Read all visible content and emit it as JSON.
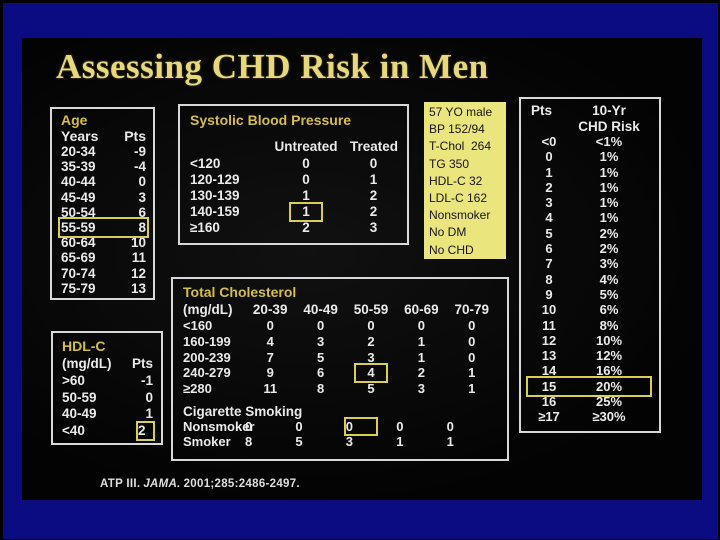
{
  "slide": {
    "title": "Assessing CHD Risk in Men",
    "citation": {
      "source": "ATP III.",
      "journal": "JAMA.",
      "ref": "2001;285:2486-2497."
    }
  },
  "colors": {
    "frame_blue": "#0c0c82",
    "slide_bg": "#030303",
    "title_yellow": "#e8d87c",
    "accent_yellow": "#d6bd4a",
    "text_white": "#eaeaea",
    "info_box_bg": "#ebe57e",
    "highlight_box": "#d9ce54"
  },
  "age": {
    "title": "Age",
    "col_range": "Years",
    "col_pts": "Pts",
    "rows": [
      {
        "range": "20-34",
        "pts": "-9"
      },
      {
        "range": "35-39",
        "pts": "-4"
      },
      {
        "range": "40-44",
        "pts": "0"
      },
      {
        "range": "45-49",
        "pts": "3"
      },
      {
        "range": "50-54",
        "pts": "6"
      },
      {
        "range": "55-59",
        "pts": "8",
        "highlighted": true
      },
      {
        "range": "60-64",
        "pts": "10"
      },
      {
        "range": "65-69",
        "pts": "11"
      },
      {
        "range": "70-74",
        "pts": "12"
      },
      {
        "range": "75-79",
        "pts": "13"
      }
    ]
  },
  "sbp": {
    "title": "Systolic Blood Pressure",
    "col_untreated": "Untreated",
    "col_treated": "Treated",
    "rows": [
      {
        "range": "<120",
        "untreated": "0",
        "treated": "0"
      },
      {
        "range": "120-129",
        "untreated": "0",
        "treated": "1"
      },
      {
        "range": "130-139",
        "untreated": "1",
        "treated": "2"
      },
      {
        "range": "140-159",
        "untreated": "1",
        "treated": "2",
        "highlighted": "untreated"
      },
      {
        "range": "≥160",
        "untreated": "2",
        "treated": "3"
      }
    ]
  },
  "patient": {
    "lines": [
      "57 YO male",
      "BP 152/94",
      "T-Chol  264",
      "TG 350",
      "HDL-C 32",
      "LDL-C 162",
      "Nonsmoker",
      "No DM",
      "No CHD"
    ]
  },
  "risk": {
    "col_pts": "Pts",
    "col_risk_line1": "10-Yr",
    "col_risk_line2": "CHD Risk",
    "rows": [
      {
        "pts": "<0",
        "risk": "<1%"
      },
      {
        "pts": "0",
        "risk": "1%"
      },
      {
        "pts": "1",
        "risk": "1%"
      },
      {
        "pts": "2",
        "risk": "1%"
      },
      {
        "pts": "3",
        "risk": "1%"
      },
      {
        "pts": "4",
        "risk": "1%"
      },
      {
        "pts": "5",
        "risk": "2%"
      },
      {
        "pts": "6",
        "risk": "2%"
      },
      {
        "pts": "7",
        "risk": "3%"
      },
      {
        "pts": "8",
        "risk": "4%"
      },
      {
        "pts": "9",
        "risk": "5%"
      },
      {
        "pts": "10",
        "risk": "6%"
      },
      {
        "pts": "11",
        "risk": "8%"
      },
      {
        "pts": "12",
        "risk": "10%"
      },
      {
        "pts": "13",
        "risk": "12%"
      },
      {
        "pts": "14",
        "risk": "16%"
      },
      {
        "pts": "15",
        "risk": "20%",
        "highlighted": true
      },
      {
        "pts": "16",
        "risk": "25%"
      },
      {
        "pts": "≥17",
        "risk": "≥30%"
      }
    ]
  },
  "cholesterol": {
    "title": "Total Cholesterol",
    "row_header": "(mg/dL)",
    "age_columns": [
      "20-39",
      "40-49",
      "50-59",
      "60-69",
      "70-79"
    ],
    "rows": [
      {
        "range": "<160",
        "values": [
          "0",
          "0",
          "0",
          "0",
          "0"
        ]
      },
      {
        "range": "160-199",
        "values": [
          "4",
          "3",
          "2",
          "1",
          "0"
        ]
      },
      {
        "range": "200-239",
        "values": [
          "7",
          "5",
          "3",
          "1",
          "0"
        ]
      },
      {
        "range": "240-279",
        "values": [
          "9",
          "6",
          "4",
          "2",
          "1"
        ],
        "highlighted_col": 2
      },
      {
        "range": "≥280",
        "values": [
          "11",
          "8",
          "5",
          "3",
          "1"
        ]
      }
    ]
  },
  "smoking": {
    "title": "Cigarette Smoking",
    "rows": [
      {
        "label": "Nonsmoker",
        "values": [
          "0",
          "0",
          "0",
          "0",
          "0"
        ],
        "highlighted_col": 2
      },
      {
        "label": "Smoker",
        "values": [
          "8",
          "5",
          "3",
          "1",
          "1"
        ]
      }
    ]
  },
  "hdl": {
    "title": "HDL-C",
    "col_range": "(mg/dL)",
    "col_pts": "Pts",
    "rows": [
      {
        "range": ">60",
        "pts": "-1"
      },
      {
        "range": "50-59",
        "pts": "0"
      },
      {
        "range": "40-49",
        "pts": "1"
      },
      {
        "range": "<40",
        "pts": "2",
        "highlighted": true
      }
    ]
  }
}
